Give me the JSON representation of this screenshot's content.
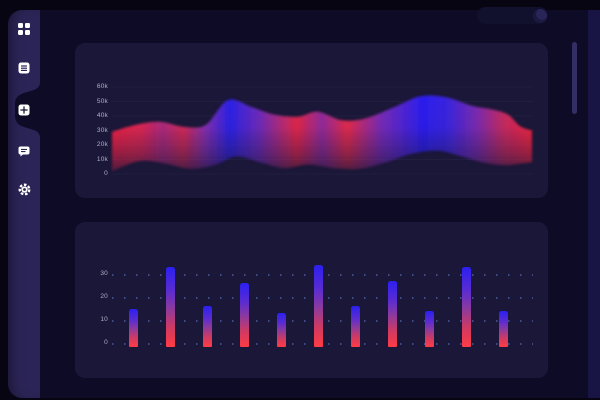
{
  "colors": {
    "page_bg": "#060511",
    "app_bg": "#0d0b26",
    "rail_bg": "#2b2456",
    "card_bg": "#1b1738",
    "right_strip_bg": "#181544",
    "scrollbar_thumb": "#332e63",
    "pill_bg": "#11102d",
    "pill_knob": "#1c1941",
    "tick_text": "#ccd0e4",
    "dot_grid": "#607ed6",
    "bar_top": "#2b1ff0",
    "bar_bottom": "#ff3b45",
    "icon_white": "#ffffff"
  },
  "sidebar": {
    "items": [
      {
        "id": "apps",
        "icon": "apps-grid-icon",
        "active": false
      },
      {
        "id": "list",
        "icon": "list-lines-icon",
        "active": false
      },
      {
        "id": "dashboard",
        "icon": "dashboard-grid-icon",
        "active": true
      },
      {
        "id": "messages",
        "icon": "message-bubble-icon",
        "active": false
      },
      {
        "id": "settings",
        "icon": "gear-icon",
        "active": false
      }
    ]
  },
  "chart_data": [
    {
      "type": "area",
      "title": "",
      "xlabel": "",
      "ylabel": "",
      "y_ticks": [
        "60k",
        "50k",
        "40k",
        "30k",
        "20k",
        "10k",
        "0"
      ],
      "ylim": [
        0,
        60000
      ],
      "grid": "faint-horizontal",
      "legend": "none",
      "unit": "thousands",
      "wave_top": [
        {
          "x": 0,
          "v": 29
        },
        {
          "x": 24,
          "v": 34
        },
        {
          "x": 48,
          "v": 36
        },
        {
          "x": 72,
          "v": 32.5
        },
        {
          "x": 94,
          "v": 34
        },
        {
          "x": 116,
          "v": 51
        },
        {
          "x": 140,
          "v": 46
        },
        {
          "x": 162,
          "v": 41
        },
        {
          "x": 186,
          "v": 39.5
        },
        {
          "x": 206,
          "v": 43
        },
        {
          "x": 230,
          "v": 37
        },
        {
          "x": 254,
          "v": 38.5
        },
        {
          "x": 282,
          "v": 46
        },
        {
          "x": 308,
          "v": 53.5
        },
        {
          "x": 334,
          "v": 53
        },
        {
          "x": 360,
          "v": 47
        },
        {
          "x": 380,
          "v": 44.5
        },
        {
          "x": 396,
          "v": 41
        },
        {
          "x": 408,
          "v": 33
        },
        {
          "x": 420,
          "v": 30
        }
      ],
      "wave_bottom": [
        {
          "x": 0,
          "v": 2
        },
        {
          "x": 28,
          "v": 9
        },
        {
          "x": 54,
          "v": 7
        },
        {
          "x": 78,
          "v": 3.5
        },
        {
          "x": 102,
          "v": 6
        },
        {
          "x": 124,
          "v": 12
        },
        {
          "x": 148,
          "v": 8
        },
        {
          "x": 172,
          "v": 4
        },
        {
          "x": 196,
          "v": 6.5
        },
        {
          "x": 222,
          "v": 4
        },
        {
          "x": 248,
          "v": 3.5
        },
        {
          "x": 274,
          "v": 8
        },
        {
          "x": 300,
          "v": 14
        },
        {
          "x": 326,
          "v": 16
        },
        {
          "x": 350,
          "v": 12
        },
        {
          "x": 374,
          "v": 7.5
        },
        {
          "x": 394,
          "v": 6
        },
        {
          "x": 408,
          "v": 7
        },
        {
          "x": 420,
          "v": 8
        }
      ],
      "gradient_stops": [
        {
          "pos": 0.0,
          "color": "#f02445"
        },
        {
          "pos": 0.07,
          "color": "#e02553"
        },
        {
          "pos": 0.12,
          "color": "#b02a7f"
        },
        {
          "pos": 0.17,
          "color": "#d62a55"
        },
        {
          "pos": 0.22,
          "color": "#8a2fae"
        },
        {
          "pos": 0.28,
          "color": "#2b22e8"
        },
        {
          "pos": 0.35,
          "color": "#6f2bbd"
        },
        {
          "pos": 0.44,
          "color": "#e62848"
        },
        {
          "pos": 0.5,
          "color": "#93299d"
        },
        {
          "pos": 0.56,
          "color": "#e8294a"
        },
        {
          "pos": 0.64,
          "color": "#7a2cb8"
        },
        {
          "pos": 0.74,
          "color": "#2b1ef0"
        },
        {
          "pos": 0.8,
          "color": "#3c25e0"
        },
        {
          "pos": 0.87,
          "color": "#7e2bb0"
        },
        {
          "pos": 0.93,
          "color": "#c62a62"
        },
        {
          "pos": 1.0,
          "color": "#f42440"
        }
      ]
    },
    {
      "type": "bar",
      "title": "",
      "xlabel": "",
      "ylabel": "",
      "y_ticks": [
        "30",
        "20",
        "10",
        "0"
      ],
      "ylim": [
        0,
        35
      ],
      "grid": "dotted-rows-at-0-10-20-30",
      "legend": "none",
      "values": [
        15,
        33,
        16,
        26,
        13,
        34,
        16,
        27,
        14,
        33,
        14
      ]
    }
  ]
}
